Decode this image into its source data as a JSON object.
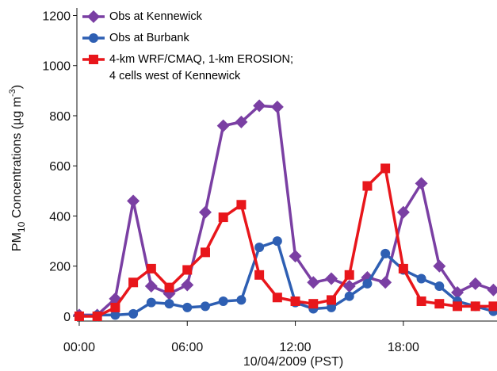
{
  "chart_data": {
    "type": "line",
    "x_label": "10/04/2009 (PST)",
    "y_label": [
      "PM",
      "10",
      " Concentrations (µg m",
      "-3",
      ")"
    ],
    "x": [
      0,
      1,
      2,
      3,
      4,
      5,
      6,
      7,
      8,
      9,
      10,
      11,
      12,
      13,
      14,
      15,
      16,
      17,
      18,
      19,
      20,
      21,
      22,
      23
    ],
    "xlim": [
      -0.13,
      23.2
    ],
    "xticks": [
      {
        "value": 0,
        "label": "00:00"
      },
      {
        "value": 6,
        "label": "06:00"
      },
      {
        "value": 12,
        "label": "12:00"
      },
      {
        "value": 18,
        "label": "18:00"
      }
    ],
    "ylim": [
      -19,
      1230
    ],
    "yticks": [
      0,
      200,
      400,
      600,
      800,
      1000,
      1200
    ],
    "grid": false,
    "legend": "upper left",
    "series": [
      {
        "name": "Obs at Kennewick",
        "color": "#7a3fa3",
        "marker": "diamond",
        "values": [
          5,
          5,
          70,
          460,
          120,
          90,
          125,
          415,
          760,
          775,
          840,
          835,
          240,
          135,
          150,
          120,
          155,
          135,
          415,
          530,
          200,
          95,
          130,
          105
        ]
      },
      {
        "name": "Obs at Burbank",
        "color": "#2e5fb3",
        "marker": "circle",
        "values": [
          0,
          5,
          5,
          10,
          55,
          50,
          35,
          40,
          60,
          65,
          275,
          300,
          55,
          30,
          35,
          80,
          130,
          250,
          185,
          150,
          120,
          60,
          40,
          20
        ]
      },
      {
        "name": "4-km WRF/CMAQ, 1-km EROSION;\n4 cells west of Kennewick",
        "color": "#e8161b",
        "marker": "square",
        "values": [
          0,
          0,
          35,
          135,
          190,
          115,
          185,
          255,
          395,
          445,
          165,
          75,
          60,
          50,
          65,
          165,
          520,
          590,
          190,
          60,
          50,
          40,
          40,
          40
        ]
      }
    ]
  }
}
